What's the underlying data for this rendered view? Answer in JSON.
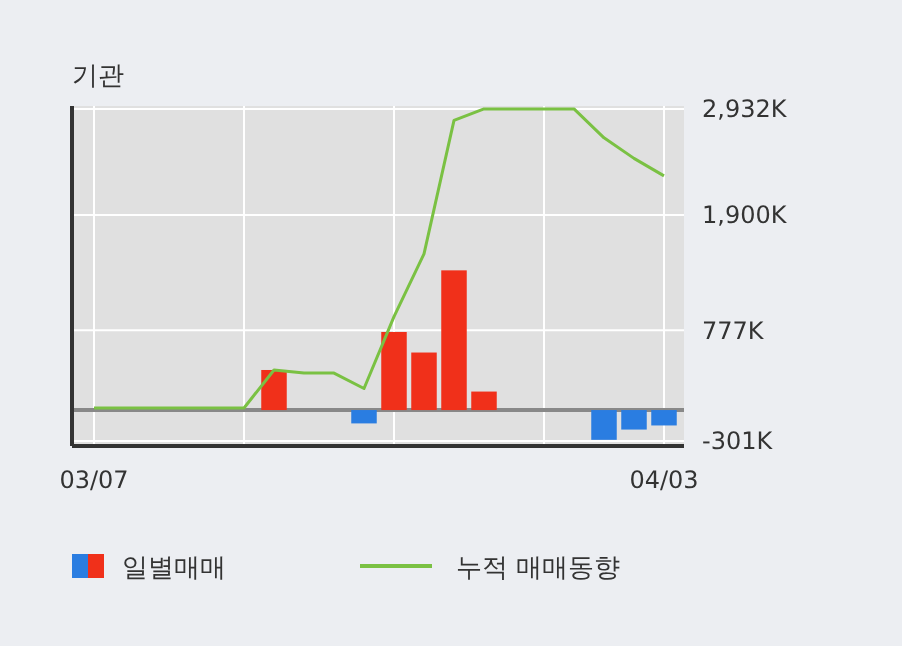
{
  "chart_data": {
    "type": "bar",
    "title": "기관",
    "categories": [
      "03/07",
      null,
      null,
      null,
      null,
      null,
      null,
      null,
      null,
      null,
      null,
      null,
      null,
      null,
      null,
      null,
      null,
      null,
      null,
      "04/03"
    ],
    "series": [
      {
        "name": "일별매매",
        "colors": [
          "#f0301a",
          "#f0301a",
          "#f0301a",
          "#f0301a",
          "#f0301a",
          "#f0301a",
          "#f0301a",
          "#f0301a",
          "#f0301a",
          "#2a7de1",
          "#f0301a",
          "#f0301a",
          "#f0301a",
          "#f0301a",
          "#f0301a",
          "#f0301a",
          "#f0301a",
          "#2a7de1",
          "#2a7de1",
          "#2a7de1"
        ],
        "values": [
          0,
          0,
          0,
          0,
          0,
          0,
          390,
          0,
          0,
          -130,
          760,
          560,
          1360,
          180,
          0,
          0,
          0,
          -290,
          -190,
          -150
        ]
      },
      {
        "name": "누적 매매동향",
        "type": "line",
        "color": "#7ac143",
        "values": [
          20,
          20,
          20,
          20,
          20,
          20,
          390,
          360,
          360,
          210,
          910,
          1520,
          2820,
          2932,
          2932,
          2932,
          2932,
          2650,
          2450,
          2280
        ]
      }
    ],
    "ylim": [
      -350,
      2960
    ],
    "yticks": [
      {
        "value": -301,
        "label": "-301K"
      },
      {
        "value": 777,
        "label": "777K"
      },
      {
        "value": 1900,
        "label": "1,900K"
      },
      {
        "value": 2932,
        "label": "2,932K"
      }
    ],
    "grid": true,
    "legend": "bottom"
  }
}
